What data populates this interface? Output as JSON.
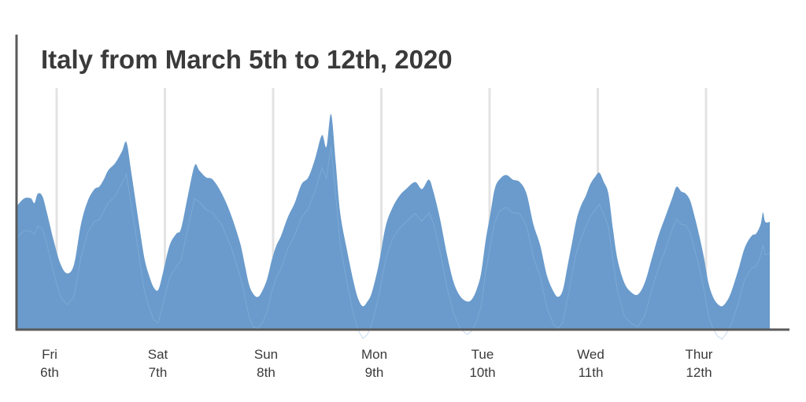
{
  "chart_data": {
    "type": "area",
    "title": "Italy from March 5th to 12th, 2020",
    "xlabel": "",
    "ylabel": "",
    "grid": "vertical lines at each day",
    "legend": "none",
    "colors": {
      "area": "#6a9bcc",
      "highlight": "#8fb8e0",
      "axis": "#5a5a5a",
      "grid": "#e3e3e3"
    },
    "ylim": [
      0,
      100
    ],
    "xlim": [
      0,
      7
    ],
    "x_ticks": [
      {
        "day": "Fri",
        "date": "6th"
      },
      {
        "day": "Sat",
        "date": "7th"
      },
      {
        "day": "Sun",
        "date": "8th"
      },
      {
        "day": "Mon",
        "date": "9th"
      },
      {
        "day": "Tue",
        "date": "10th"
      },
      {
        "day": "Wed",
        "date": "11th"
      },
      {
        "day": "Thur",
        "date": "12th"
      }
    ],
    "series": [
      {
        "x": [
          0,
          0.06,
          0.12,
          0.15,
          0.18,
          0.22,
          0.26,
          0.32,
          0.38,
          0.44,
          0.5,
          0.56,
          0.62,
          0.68,
          0.72,
          0.76,
          0.8,
          0.86,
          0.92,
          0.96,
          1.0,
          1.04,
          1.08,
          1.12,
          1.16,
          1.2,
          1.24,
          1.28,
          1.34,
          1.4,
          1.44,
          1.5,
          1.56,
          1.6,
          1.66,
          1.72,
          1.8,
          1.88,
          1.96,
          2.0,
          2.04,
          2.08,
          2.12,
          2.16,
          2.2,
          2.24,
          2.28,
          2.32,
          2.38,
          2.44,
          2.5,
          2.56,
          2.62,
          2.68,
          2.72,
          2.76,
          2.8,
          2.84,
          2.9,
          2.96,
          3.0,
          3.04,
          3.08,
          3.12,
          3.18,
          3.24,
          3.3,
          3.36,
          3.42,
          3.5,
          3.56,
          3.62,
          3.66,
          3.72,
          3.78,
          3.84,
          3.9,
          3.96,
          4.0,
          4.04,
          4.08,
          4.12,
          4.16,
          4.2,
          4.24,
          4.3,
          4.36,
          4.42,
          4.48,
          4.54,
          4.6,
          4.66,
          4.72,
          4.76,
          4.8,
          4.84,
          4.88,
          4.92,
          4.96,
          5.0,
          5.04,
          5.08,
          5.12,
          5.16,
          5.2,
          5.24,
          5.28,
          5.34,
          5.4,
          5.46,
          5.52,
          5.58,
          5.64,
          5.7,
          5.76,
          5.8,
          5.84,
          5.88,
          5.92,
          5.96,
          6.0,
          6.04,
          6.08,
          6.12,
          6.16,
          6.2,
          6.24,
          6.28,
          6.34,
          6.4,
          6.46,
          6.5,
          6.54,
          6.56,
          6.58,
          6.62
        ],
        "y": [
          53,
          56,
          56,
          54,
          58,
          57,
          50,
          38,
          28,
          24,
          28,
          45,
          55,
          60,
          61,
          64,
          68,
          71,
          76,
          80,
          68,
          55,
          42,
          30,
          23,
          18,
          17,
          24,
          36,
          41,
          43,
          57,
          70,
          68,
          65,
          64,
          58,
          49,
          37,
          28,
          19,
          15,
          14,
          17,
          22,
          30,
          36,
          40,
          48,
          54,
          62,
          65,
          73,
          83,
          78,
          92,
          72,
          50,
          34,
          20,
          13,
          10,
          12,
          16,
          28,
          44,
          52,
          57,
          60,
          63,
          60,
          64,
          59,
          47,
          32,
          20,
          14,
          12,
          13,
          17,
          24,
          38,
          49,
          60,
          64,
          66,
          64,
          63,
          58,
          45,
          36,
          23,
          16,
          14,
          17,
          27,
          37,
          47,
          53,
          57,
          62,
          65,
          67,
          63,
          58,
          43,
          30,
          20,
          16,
          15,
          20,
          30,
          40,
          48,
          56,
          61,
          59,
          58,
          55,
          48,
          40,
          31,
          20,
          14,
          11,
          10,
          12,
          16,
          25,
          35,
          40,
          41,
          45,
          50,
          46,
          46
        ]
      }
    ]
  }
}
